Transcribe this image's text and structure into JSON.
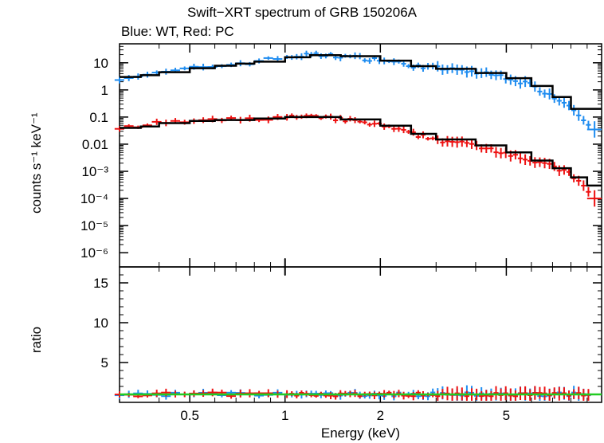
{
  "chart_data": [
    {
      "type": "scatter",
      "panel": "spectrum",
      "title": "Swift−XRT spectrum of GRB 150206A",
      "subtitle": "Blue: WT, Red: PC",
      "xlabel": "Energy (keV)",
      "ylabel": "counts s⁻¹ keV⁻¹",
      "xscale": "log",
      "yscale": "log",
      "xlim": [
        0.3,
        10
      ],
      "ylim": [
        3e-07,
        50
      ],
      "x_ticks": [
        "0.5",
        "1",
        "2",
        "5"
      ],
      "x_tick_values": [
        0.5,
        1,
        2,
        5
      ],
      "y_ticks": [
        "10",
        "1",
        "0.1",
        "0.01",
        "10⁻³",
        "10⁻⁴",
        "10⁻⁵",
        "10⁻⁶"
      ],
      "y_tick_values": [
        10,
        1,
        0.1,
        0.01,
        0.001,
        0.0001,
        1e-05,
        1e-06
      ],
      "series": [
        {
          "color": "#1e8cf0",
          "x": [
            0.3,
            0.4,
            0.5,
            0.6,
            0.7,
            0.8,
            1.0,
            1.2,
            1.5,
            2.0,
            2.5,
            3.0,
            4.0,
            5.0,
            6.0,
            7.0,
            8.0,
            9.5
          ],
          "y": [
            2.8,
            4,
            6,
            7.5,
            9,
            11,
            16,
            20,
            18,
            13,
            8,
            6.5,
            4.5,
            3,
            1.5,
            0.6,
            0.25,
            0.035
          ]
        },
        {
          "color": "#ee1111",
          "x": [
            0.3,
            0.4,
            0.5,
            0.6,
            0.8,
            1.0,
            1.2,
            1.5,
            2.0,
            2.5,
            3.0,
            4.0,
            5.0,
            6.0,
            7.0,
            8.0,
            9.5
          ],
          "y": [
            0.035,
            0.06,
            0.07,
            0.075,
            0.085,
            0.1,
            0.1,
            0.085,
            0.05,
            0.025,
            0.015,
            0.009,
            0.005,
            0.0025,
            0.0015,
            0.0008,
            0.0001
          ]
        }
      ],
      "model": {
        "color": "#000000",
        "wt_x": [
          0.3,
          0.35,
          0.4,
          0.5,
          0.6,
          0.7,
          0.8,
          1.0,
          1.2,
          1.5,
          2.0,
          2.5,
          3.0,
          4.0,
          5.0,
          6.0,
          7.0,
          8.0,
          10.0
        ],
        "wt_y": [
          3,
          3.5,
          4.5,
          6.3,
          7.8,
          9.3,
          11,
          16,
          19,
          17.5,
          12,
          7.5,
          6,
          4.2,
          2.7,
          1.4,
          0.55,
          0.2,
          0.1
        ],
        "pc_x": [
          0.3,
          0.35,
          0.4,
          0.5,
          0.6,
          0.8,
          1.0,
          1.2,
          1.5,
          2.0,
          2.5,
          3.0,
          4.0,
          5.0,
          6.0,
          7.0,
          8.0,
          9.0,
          10.0
        ],
        "pc_y": [
          0.04,
          0.045,
          0.06,
          0.072,
          0.078,
          0.088,
          0.1,
          0.1,
          0.082,
          0.048,
          0.024,
          0.015,
          0.009,
          0.005,
          0.0025,
          0.0013,
          0.0006,
          0.0003,
          0.0001
        ]
      }
    },
    {
      "type": "scatter",
      "panel": "ratio",
      "ylabel": "ratio",
      "xlabel": "Energy (keV)",
      "xscale": "log",
      "xlim": [
        0.3,
        10
      ],
      "ylim": [
        0,
        17
      ],
      "y_ticks": [
        "5",
        "10",
        "15"
      ],
      "y_tick_values": [
        5,
        10,
        15
      ],
      "reference_line": {
        "value": 1,
        "color": "#22cc22"
      },
      "series": [
        {
          "color": "#1e8cf0",
          "x": [
            0.3,
            0.5,
            1,
            2,
            5,
            9.5
          ],
          "y": [
            1.0,
            1.1,
            1.0,
            1.2,
            1.1,
            1.3
          ]
        },
        {
          "color": "#ee1111",
          "x": [
            0.3,
            0.5,
            1,
            2,
            5,
            9.5
          ],
          "y": [
            1.0,
            1.0,
            1.1,
            1.1,
            1.2,
            1.4
          ]
        }
      ]
    }
  ]
}
